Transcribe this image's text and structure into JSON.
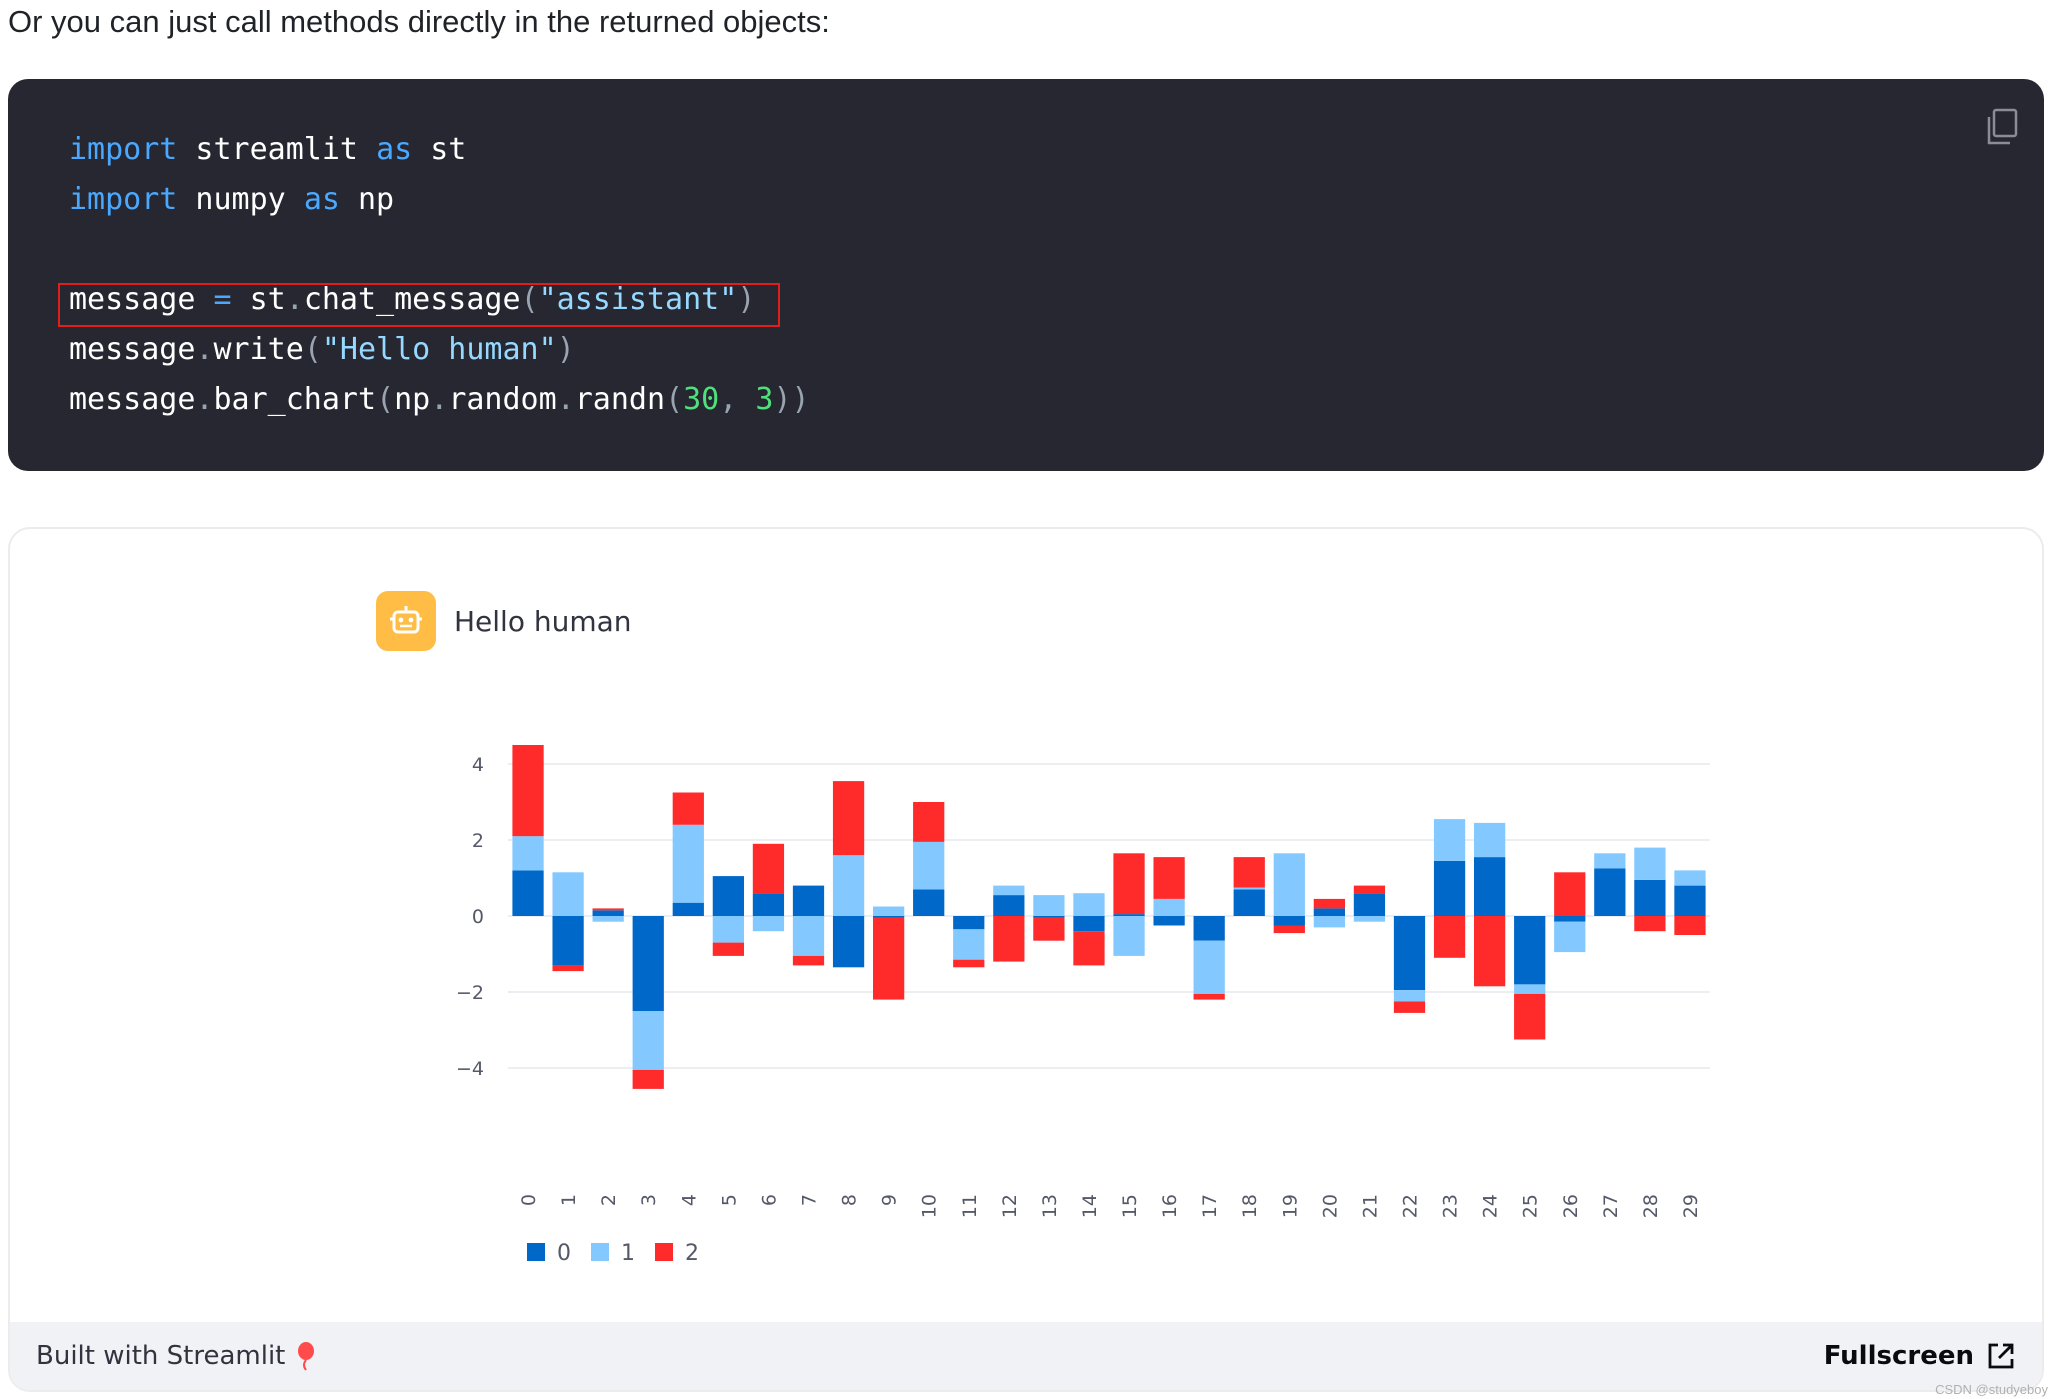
{
  "intro_text": "Or you can just call methods directly in the returned objects:",
  "code": {
    "line1": {
      "kw1": "import",
      "mod": " streamlit ",
      "kw2": "as",
      "alias": " st"
    },
    "line2": {
      "kw1": "import",
      "mod": " numpy ",
      "kw2": "as",
      "alias": " np"
    },
    "line3": {
      "var": "message ",
      "op": "=",
      "call": " st",
      "dot": ".",
      "fn": "chat_message",
      "open": "(",
      "str": "\"assistant\"",
      "close": ")"
    },
    "line4": {
      "var": "message",
      "dot": ".",
      "fn": "write",
      "open": "(",
      "str": "\"Hello human\"",
      "close": ")"
    },
    "line5": {
      "var": "message",
      "dot1": ".",
      "fn": "bar_chart",
      "open": "(",
      "mod": "np",
      "dot2": ".",
      "sub": "random",
      "dot3": ".",
      "fn2": "randn",
      "open2": "(",
      "n1": "30",
      "comma": ", ",
      "n2": "3",
      "close": "))"
    }
  },
  "copy_icon": "copy-icon",
  "app": {
    "avatar_icon": "robot-icon",
    "message": "Hello human",
    "footer_left": "Built with Streamlit",
    "balloon_icon": "balloon-icon",
    "footer_right": "Fullscreen",
    "fullscreen_icon": "external-link-icon"
  },
  "watermark": "CSDN @studyeboy",
  "colors": {
    "series0": "#0068c9",
    "series1": "#83c9ff",
    "series2": "#ff2b2b",
    "code_bg": "#262730",
    "avatar_bg": "#ffbd45"
  },
  "chart_data": {
    "type": "bar",
    "stacked": true,
    "categories": [
      "0",
      "1",
      "2",
      "3",
      "4",
      "5",
      "6",
      "7",
      "8",
      "9",
      "10",
      "11",
      "12",
      "13",
      "14",
      "15",
      "16",
      "17",
      "18",
      "19",
      "20",
      "21",
      "22",
      "23",
      "24",
      "25",
      "26",
      "27",
      "28",
      "29"
    ],
    "series": [
      {
        "name": "0",
        "color": "#0068c9",
        "values": [
          1.2,
          -1.3,
          0.15,
          -2.5,
          0.35,
          1.05,
          0.6,
          0.8,
          -1.35,
          -0.05,
          0.7,
          -0.35,
          0.55,
          -0.05,
          -0.4,
          0.05,
          -0.25,
          -0.65,
          0.7,
          -0.25,
          0.2,
          0.6,
          -1.95,
          1.45,
          1.55,
          -1.8,
          -0.15,
          1.25,
          0.95,
          0.8
        ]
      },
      {
        "name": "1",
        "color": "#83c9ff",
        "values": [
          0.9,
          1.15,
          -0.15,
          -1.55,
          2.05,
          -0.7,
          -0.4,
          -1.05,
          1.6,
          0.25,
          1.25,
          -0.8,
          0.25,
          0.55,
          0.6,
          -1.05,
          0.45,
          -1.4,
          0.05,
          1.65,
          -0.3,
          -0.15,
          -0.3,
          1.1,
          0.9,
          -0.25,
          -0.8,
          0.4,
          0.85,
          0.4
        ]
      },
      {
        "name": "2",
        "color": "#ff2b2b",
        "values": [
          2.4,
          -0.15,
          0.05,
          -0.5,
          0.85,
          -0.35,
          1.3,
          -0.25,
          1.95,
          -2.15,
          1.05,
          -0.2,
          -1.2,
          -0.6,
          -0.9,
          1.6,
          1.1,
          -0.15,
          0.8,
          -0.2,
          0.25,
          0.2,
          -0.3,
          -1.1,
          -1.85,
          -1.2,
          1.15,
          0.0,
          -0.4,
          -0.5
        ]
      }
    ],
    "yticks": [
      4,
      2,
      0,
      -2,
      -4
    ],
    "ylim": [
      -4.6,
      4.6
    ],
    "legend": [
      "0",
      "1",
      "2"
    ],
    "legend_position": "bottom-left",
    "grid": true
  }
}
